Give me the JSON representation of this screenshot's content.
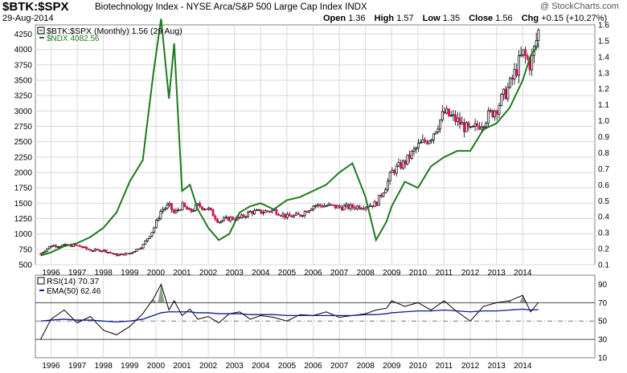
{
  "header": {
    "symbol": "$BTK:$SPX",
    "description": "Biotechnology Index - NYSE Arca/S&P 500 Large Cap Index  INDX",
    "date": "29-Aug-2014",
    "open_label": "Open",
    "open": "1.36",
    "high_label": "High",
    "high": "1.57",
    "low_label": "Low",
    "low": "1.35",
    "close_label": "Close",
    "close": "1.56",
    "chg_label": "Chg",
    "chg": "+0.15 (+10.27%)",
    "brand": "@ StockCharts.com"
  },
  "colors": {
    "grid": "#d9d9d9",
    "ratio_up": "#000000",
    "ratio_down": "#e0115f",
    "ndx": "#1f7a1f",
    "rsi": "#000000",
    "ema": "#0a1a8c",
    "rsi_fill": "#6c8a6c"
  },
  "chart_data": [
    {
      "type": "line",
      "title": "$BTK:$SPX (Monthly) 1.56 (29 Aug)",
      "x": [
        1995.6,
        1996.0,
        1996.5,
        1997.0,
        1997.5,
        1998.0,
        1998.5,
        1999.0,
        1999.5,
        1999.9,
        2000.2,
        2000.5,
        2000.7,
        2001.0,
        2001.3,
        2001.6,
        2002.0,
        2002.4,
        2002.8,
        2003.2,
        2003.6,
        2004.0,
        2004.5,
        2005.0,
        2005.5,
        2006.0,
        2006.5,
        2007.0,
        2007.5,
        2008.0,
        2008.4,
        2008.8,
        2009.0,
        2009.5,
        2010.0,
        2010.5,
        2011.0,
        2011.5,
        2012.0,
        2012.5,
        2013.0,
        2013.5,
        2014.0,
        2014.3,
        2014.6
      ],
      "series": [
        {
          "name": "$BTK:$SPX",
          "axis": "right",
          "values": [
            0.17,
            0.22,
            0.22,
            0.22,
            0.19,
            0.19,
            0.16,
            0.17,
            0.22,
            0.32,
            0.44,
            0.47,
            0.42,
            0.47,
            0.43,
            0.47,
            0.45,
            0.37,
            0.39,
            0.39,
            0.43,
            0.43,
            0.44,
            0.4,
            0.41,
            0.47,
            0.47,
            0.46,
            0.46,
            0.47,
            0.48,
            0.6,
            0.68,
            0.74,
            0.84,
            0.9,
            1.05,
            1.0,
            0.93,
            1.0,
            1.08,
            1.22,
            1.42,
            1.35,
            1.56
          ]
        },
        {
          "name": "$NDX 4082.56",
          "axis": "left",
          "values": [
            650,
            700,
            800,
            850,
            950,
            1100,
            1350,
            1850,
            2200,
            3600,
            4500,
            3200,
            4100,
            1700,
            1800,
            1400,
            1100,
            900,
            1000,
            1350,
            1450,
            1500,
            1400,
            1550,
            1600,
            1700,
            1800,
            2000,
            2150,
            1600,
            900,
            1200,
            1450,
            1850,
            1750,
            2100,
            2250,
            2350,
            2350,
            2700,
            2800,
            3050,
            3500,
            3900,
            4082.56
          ]
        }
      ],
      "ylim_left": [
        500,
        4400
      ],
      "ylim_right": [
        0.1,
        1.6
      ],
      "left_ticks": [
        500,
        750,
        1000,
        1250,
        1500,
        1750,
        2000,
        2250,
        2500,
        2750,
        3000,
        3250,
        3500,
        3750,
        4000,
        4250
      ],
      "right_ticks": [
        0.1,
        0.2,
        0.3,
        0.4,
        0.5,
        0.6,
        0.7,
        0.8,
        0.9,
        1.0,
        1.1,
        1.2,
        1.3,
        1.4,
        1.5,
        1.6
      ],
      "x_ticks": [
        "1996",
        "1997",
        "1998",
        "1999",
        "2000",
        "2001",
        "2002",
        "2003",
        "2004",
        "2005",
        "2006",
        "2007",
        "2008",
        "2009",
        "2010",
        "2011",
        "2012",
        "2013",
        "2014"
      ],
      "legend_ratio": "$BTK:$SPX (Monthly) 1.56 (29 Aug)",
      "legend_ndx": "$NDX 4082.56"
    },
    {
      "type": "line",
      "title": "RSI(14) 70.37",
      "x": [
        1995.6,
        1996.0,
        1996.5,
        1997.0,
        1997.5,
        1998.0,
        1998.5,
        1999.0,
        1999.5,
        1999.9,
        2000.2,
        2000.5,
        2000.7,
        2001.0,
        2001.3,
        2001.6,
        2002.0,
        2002.4,
        2002.8,
        2003.2,
        2003.6,
        2004.0,
        2004.5,
        2005.0,
        2005.5,
        2006.0,
        2006.5,
        2007.0,
        2007.5,
        2008.0,
        2008.4,
        2008.8,
        2009.0,
        2009.5,
        2010.0,
        2010.5,
        2011.0,
        2011.5,
        2012.0,
        2012.5,
        2013.0,
        2013.5,
        2014.0,
        2014.3,
        2014.6
      ],
      "series": [
        {
          "name": "RSI(14) 70.37",
          "values": [
            30,
            52,
            62,
            48,
            55,
            40,
            35,
            44,
            58,
            74,
            90,
            62,
            72,
            56,
            63,
            52,
            55,
            48,
            58,
            60,
            52,
            56,
            54,
            50,
            57,
            56,
            60,
            54,
            56,
            58,
            62,
            64,
            72,
            66,
            70,
            62,
            72,
            60,
            50,
            66,
            70,
            72,
            78,
            60,
            70.37
          ]
        },
        {
          "name": "EMA(50) 62.46",
          "values": [
            50,
            51,
            52,
            51,
            51,
            50,
            49,
            50,
            52,
            56,
            59,
            60,
            60,
            60,
            60,
            59,
            59,
            58,
            58,
            58,
            57,
            57,
            57,
            56,
            56,
            56,
            56,
            56,
            56,
            57,
            57,
            58,
            59,
            60,
            61,
            61,
            62,
            61,
            60,
            61,
            61,
            62,
            63,
            62,
            62.46
          ]
        }
      ],
      "ylim": [
        10,
        100
      ],
      "ticks": [
        10,
        30,
        50,
        70,
        90
      ],
      "ref_lines": [
        30,
        50,
        70
      ],
      "x_ticks": [
        "1996",
        "1997",
        "1998",
        "1999",
        "2000",
        "2001",
        "2002",
        "2003",
        "2004",
        "2005",
        "2006",
        "2007",
        "2008",
        "2009",
        "2010",
        "2011",
        "2012",
        "2013",
        "2014"
      ],
      "legend_rsi": "RSI(14) 70.37",
      "legend_ema": "EMA(50) 62.46"
    }
  ]
}
